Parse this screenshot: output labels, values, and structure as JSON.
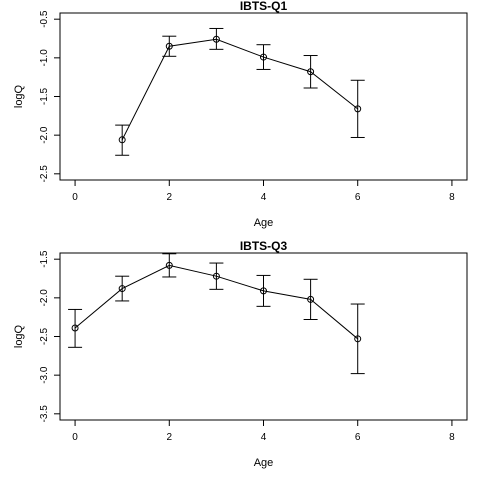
{
  "chart_data": [
    {
      "type": "line",
      "title": "IBTS-Q1",
      "xlabel": "Age",
      "ylabel": "logQ",
      "xlim": [
        0,
        8
      ],
      "ylim": [
        -2.5,
        -0.5
      ],
      "x_ticks": [
        0,
        2,
        4,
        6,
        8
      ],
      "y_ticks": [
        -2.5,
        -2.0,
        -1.5,
        -1.0,
        -0.5
      ],
      "y_tick_labels": [
        "-2.5",
        "-2.0",
        "-1.5",
        "-1.0",
        "-0.5"
      ],
      "grid": false,
      "points": [
        {
          "x": 1,
          "y": -2.06,
          "lower": -2.26,
          "upper": -1.87
        },
        {
          "x": 2,
          "y": -0.85,
          "lower": -0.98,
          "upper": -0.72
        },
        {
          "x": 3,
          "y": -0.76,
          "lower": -0.89,
          "upper": -0.62
        },
        {
          "x": 4,
          "y": -0.99,
          "lower": -1.15,
          "upper": -0.83
        },
        {
          "x": 5,
          "y": -1.18,
          "lower": -1.39,
          "upper": -0.97
        },
        {
          "x": 6,
          "y": -1.66,
          "lower": -2.03,
          "upper": -1.29
        }
      ]
    },
    {
      "type": "line",
      "title": "IBTS-Q3",
      "xlabel": "Age",
      "ylabel": "logQ",
      "xlim": [
        0,
        8
      ],
      "ylim": [
        -3.5,
        -1.5
      ],
      "x_ticks": [
        0,
        2,
        4,
        6,
        8
      ],
      "y_ticks": [
        -3.5,
        -3.0,
        -2.5,
        -2.0,
        -1.5
      ],
      "y_tick_labels": [
        "-3.5",
        "-3.0",
        "-2.5",
        "-2.0",
        "-1.5"
      ],
      "grid": false,
      "points": [
        {
          "x": 0,
          "y": -2.39,
          "lower": -2.64,
          "upper": -2.15
        },
        {
          "x": 1,
          "y": -1.88,
          "lower": -2.04,
          "upper": -1.72
        },
        {
          "x": 2,
          "y": -1.58,
          "lower": -1.73,
          "upper": -1.43
        },
        {
          "x": 3,
          "y": -1.72,
          "lower": -1.89,
          "upper": -1.55
        },
        {
          "x": 4,
          "y": -1.91,
          "lower": -2.11,
          "upper": -1.71
        },
        {
          "x": 5,
          "y": -2.02,
          "lower": -2.28,
          "upper": -1.76
        },
        {
          "x": 6,
          "y": -2.53,
          "lower": -2.98,
          "upper": -2.08
        }
      ]
    }
  ]
}
